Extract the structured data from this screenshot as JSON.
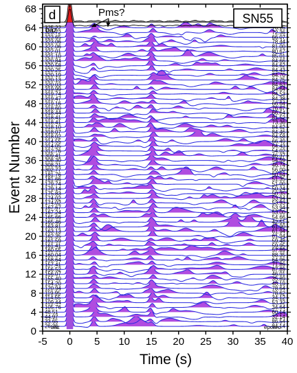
{
  "panel_label": "d",
  "station": "SN55",
  "annotation": "Pms?",
  "top_left_label": "baz",
  "bottom_left_label": "baz",
  "bottom_right_label": "epcarc",
  "colors": {
    "trace": "#2a2ae0",
    "positive_fill": "#b04ce0",
    "direct_p": "#a14fdc",
    "stack_fill": "#999999",
    "stack_top": "#e61c1c",
    "frame": "#000000"
  },
  "chart_data": {
    "type": "line",
    "xlabel": "Time (s)",
    "ylabel": "Event Number",
    "xlim": [
      -5,
      40
    ],
    "ylim": [
      0,
      69
    ],
    "xticks": [
      -5,
      0,
      5,
      10,
      15,
      20,
      25,
      30,
      35,
      40
    ],
    "yticks": [
      0,
      4,
      8,
      12,
      16,
      20,
      24,
      28,
      32,
      36,
      40,
      44,
      48,
      52,
      56,
      60,
      64,
      68
    ],
    "left_labels": [
      "26.36",
      "33.65",
      "44.97",
      "48.51",
      "105.76",
      "109.44",
      "114.55",
      "119.95",
      "120.94",
      "154.20",
      "155.40",
      "156.07",
      "156.52",
      "157.41",
      "158.64",
      "160.04",
      "160.55",
      "161.41",
      "161.59",
      "162.35",
      "163.13",
      "163.81",
      "165.46",
      "165.66",
      "167.24",
      "167.67",
      "174.02",
      "174.02",
      "175.83",
      "179.14",
      "179.74",
      "181.66",
      "181.76",
      "302.77",
      "308.21",
      "308.30",
      "309.41",
      "312.76",
      "314.05",
      "314.55",
      "318.02",
      "318.07",
      "318.10",
      "318.41",
      "318.41",
      "318.44",
      "318.60",
      "319.16",
      "319.47",
      "319.74",
      "319.99",
      "320.03",
      "320.13",
      "320.19",
      "320.25",
      "320.58",
      "320.84",
      "321.10",
      "322.01",
      "322.06",
      "323.06",
      "323.65",
      "323.72",
      "325.22"
    ],
    "right_labels": [
      "84.14",
      "86.54",
      "32.14",
      "60.14",
      "34.64",
      "53.32",
      "34.12",
      "78.62",
      "78.64",
      "48.19",
      "35.89",
      "46.01",
      "87.89",
      "71.89",
      "64.96",
      "88.35",
      "57.89",
      "59.95",
      "59.48",
      "61.94",
      "61.94",
      "61.90",
      "42.51",
      "54.66",
      "53.00",
      "53.94",
      "53.93",
      "53.94",
      "50.35",
      "50.24",
      "51.00",
      "51.35",
      "50.64",
      "56.00",
      "46.74",
      "54.59",
      "46.37",
      "54.02",
      "64.43",
      "66.49",
      "84.58",
      "84.46",
      "84.62",
      "73.36",
      "81.52",
      "66.64",
      "76.67",
      "66.64",
      "84.38",
      "84.53",
      "84.64",
      "84.63",
      "84.75",
      "84.70",
      "84.43",
      "84.62",
      "84.66",
      "85.01",
      "80.67",
      "81.00",
      "78.44",
      "66.07",
      "72.36",
      "76.16"
    ],
    "series": [
      {
        "name": "",
        "type": "receiver functions",
        "count": 64
      },
      {
        "name": "",
        "type": "stack",
        "count": 1
      }
    ],
    "direct_p_time": 0,
    "annotation_arrow_times": [
      4.0,
      7.0
    ],
    "grid": false
  }
}
